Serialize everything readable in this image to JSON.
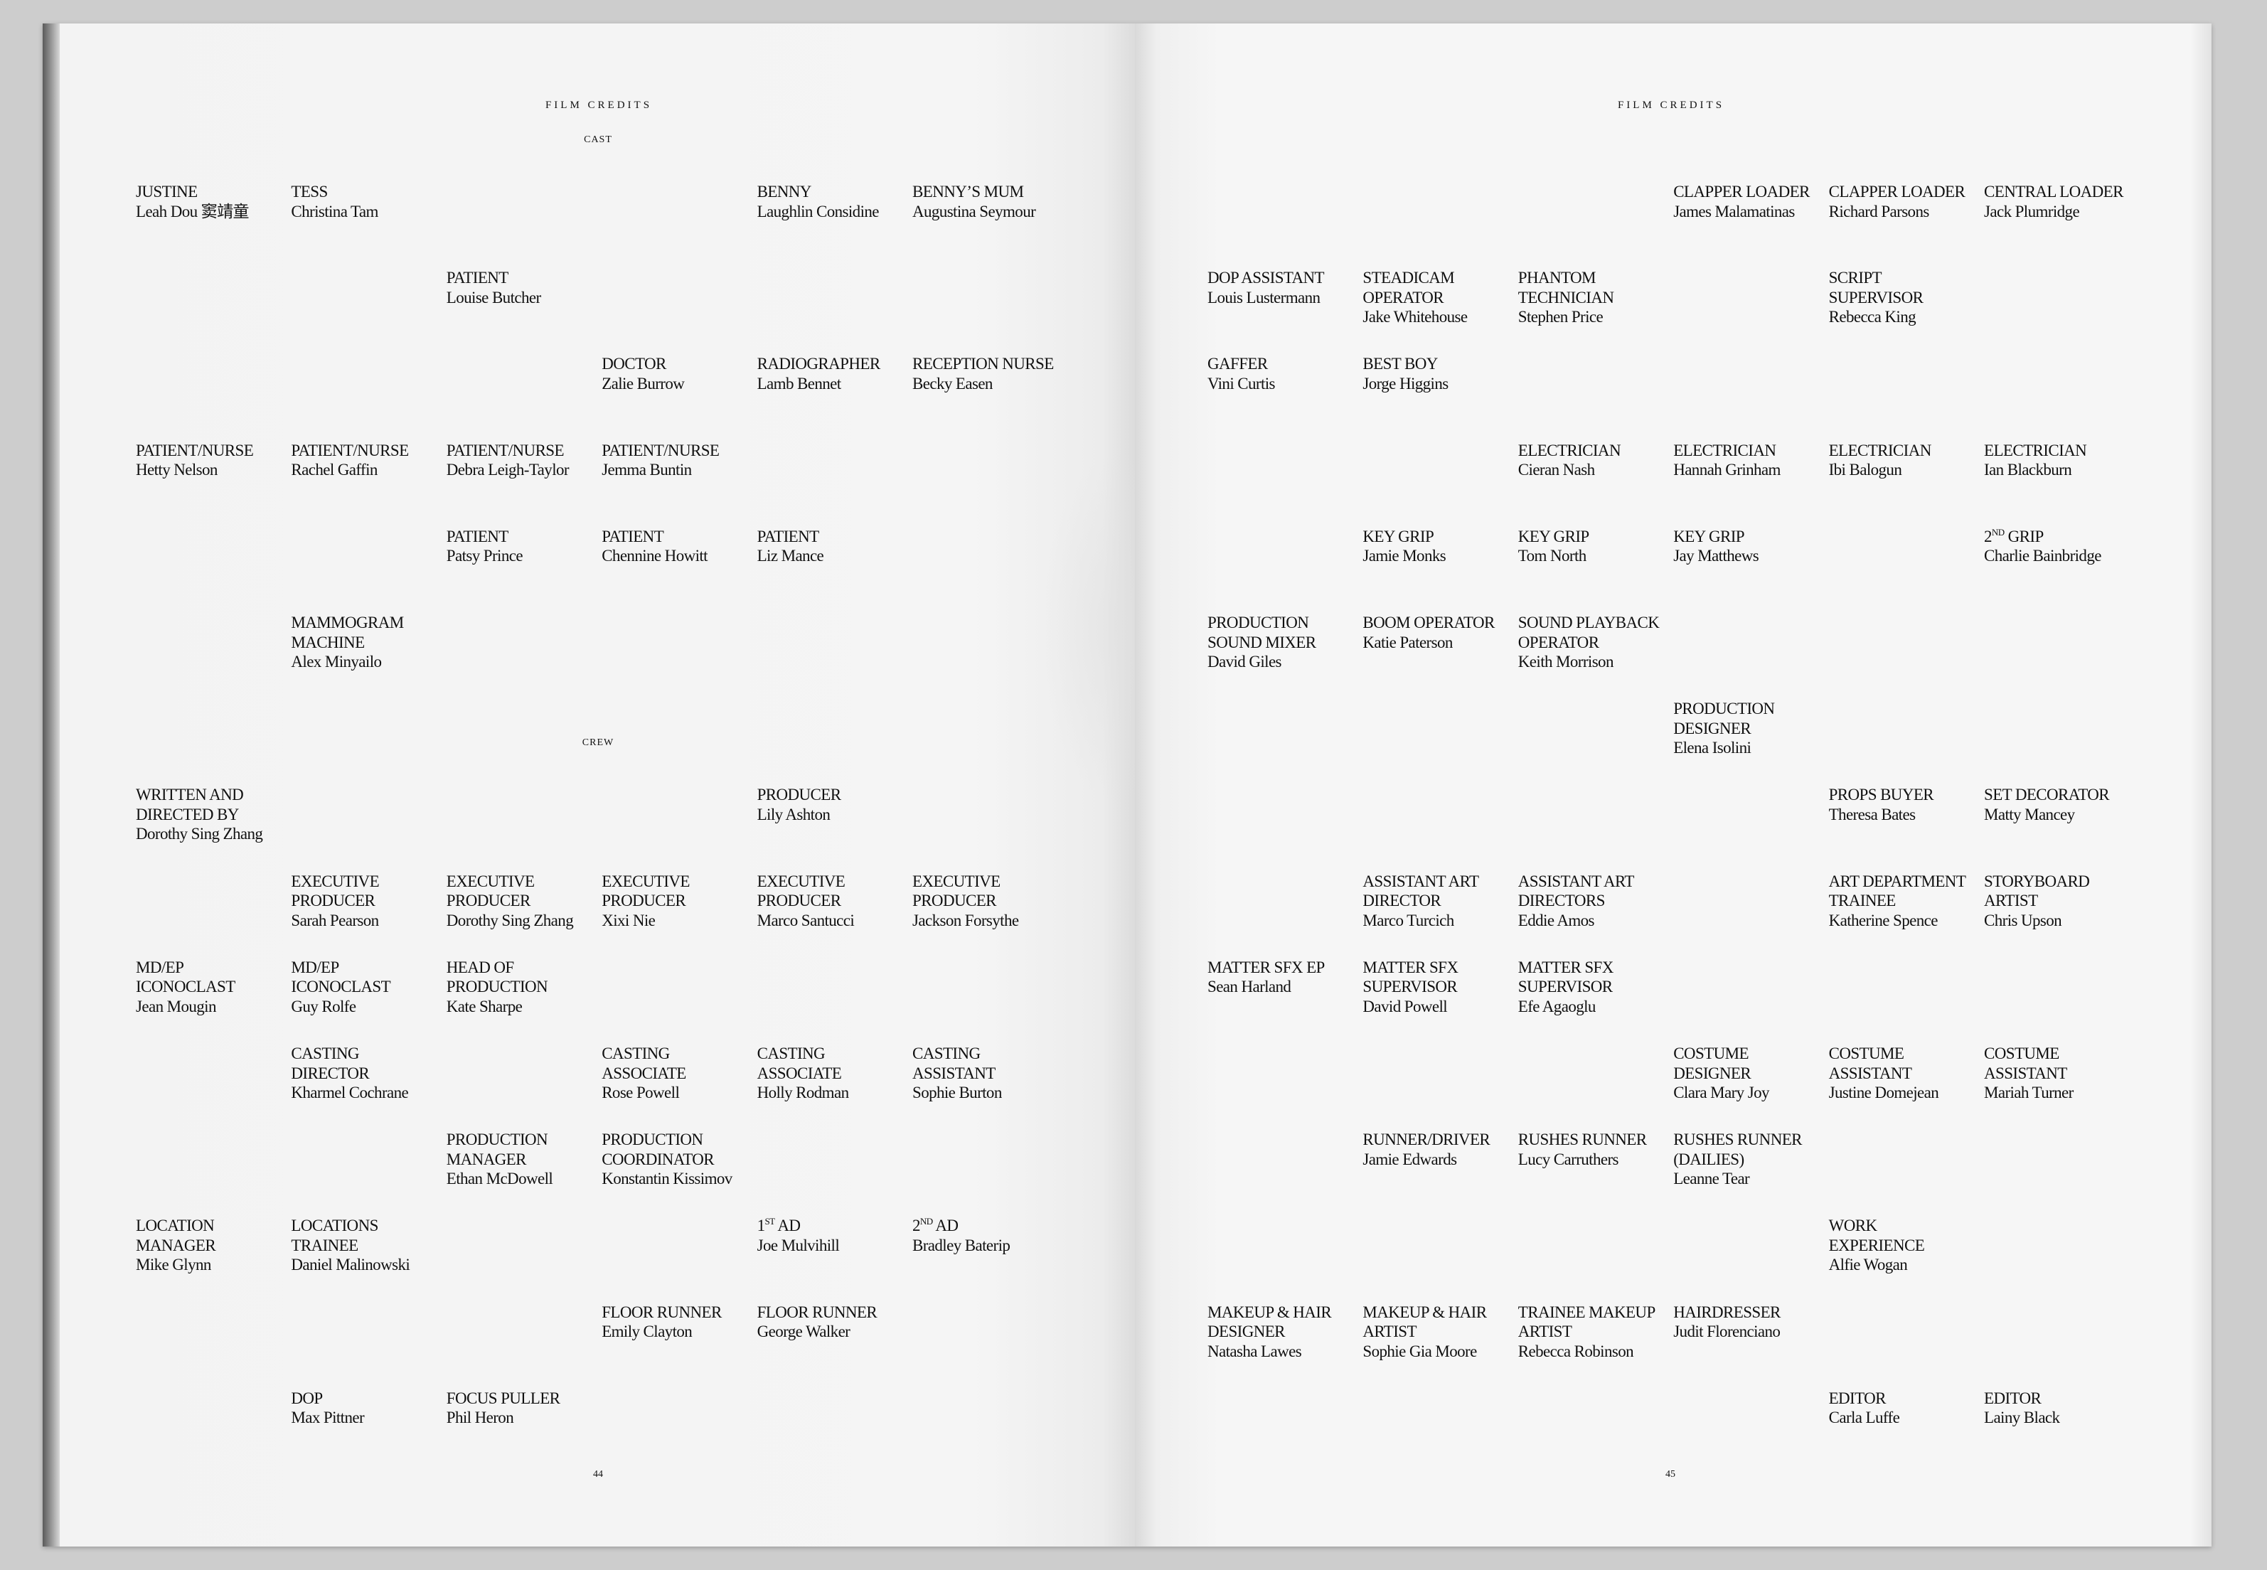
{
  "left_page": {
    "header": "FILM CREDITS",
    "page_number": "44",
    "cast": {
      "label": "CAST",
      "rows": [
        [
          {
            "role": [
              "JUSTINE"
            ],
            "name": "Leah Dou 窦靖童"
          },
          {
            "role": [
              "TESS"
            ],
            "name": "Christina Tam"
          },
          null,
          null,
          {
            "role": [
              "BENNY"
            ],
            "name": "Laughlin Considine"
          },
          {
            "role": [
              "BENNY’S MUM"
            ],
            "name": "Augustina Seymour"
          }
        ],
        [
          null,
          null,
          {
            "role": [
              "PATIENT"
            ],
            "name": "Louise Butcher"
          },
          null,
          null,
          null
        ],
        [
          null,
          null,
          null,
          {
            "role": [
              "DOCTOR"
            ],
            "name": "Zalie Burrow"
          },
          {
            "role": [
              "RADIOGRAPHER"
            ],
            "name": "Lamb Bennet"
          },
          {
            "role": [
              "RECEPTION NURSE"
            ],
            "name": "Becky Easen"
          }
        ],
        [
          {
            "role": [
              "PATIENT/NURSE"
            ],
            "name": "Hetty Nelson"
          },
          {
            "role": [
              "PATIENT/NURSE"
            ],
            "name": "Rachel Gaffin"
          },
          {
            "role": [
              "PATIENT/NURSE"
            ],
            "name": "Debra Leigh-Taylor"
          },
          {
            "role": [
              "PATIENT/NURSE"
            ],
            "name": "Jemma Buntin"
          },
          null,
          null
        ],
        [
          null,
          null,
          {
            "role": [
              "PATIENT"
            ],
            "name": "Patsy Prince"
          },
          {
            "role": [
              "PATIENT"
            ],
            "name": "Chennine Howitt"
          },
          {
            "role": [
              "PATIENT"
            ],
            "name": "Liz Mance"
          },
          null
        ],
        [
          null,
          {
            "role": [
              "MAMMOGRAM",
              "MACHINE"
            ],
            "name": "Alex Minyailo"
          },
          null,
          null,
          null,
          null
        ]
      ]
    },
    "crew": {
      "label": "CREW",
      "rows": [
        [
          {
            "role": [
              "WRITTEN AND",
              "DIRECTED BY"
            ],
            "name": "Dorothy Sing Zhang"
          },
          null,
          null,
          null,
          {
            "role": [
              "PRODUCER"
            ],
            "name": "Lily Ashton"
          },
          null
        ],
        [
          null,
          {
            "role": [
              "EXECUTIVE",
              "PRODUCER"
            ],
            "name": "Sarah Pearson"
          },
          {
            "role": [
              "EXECUTIVE",
              "PRODUCER"
            ],
            "name": "Dorothy Sing Zhang"
          },
          {
            "role": [
              "EXECUTIVE",
              "PRODUCER"
            ],
            "name": "Xixi Nie"
          },
          {
            "role": [
              "EXECUTIVE",
              "PRODUCER"
            ],
            "name": "Marco Santucci"
          },
          {
            "role": [
              "EXECUTIVE",
              "PRODUCER"
            ],
            "name": "Jackson Forsythe"
          }
        ],
        [
          {
            "role": [
              "MD/EP",
              "ICONOCLAST"
            ],
            "name": "Jean Mougin"
          },
          {
            "role": [
              "MD/EP",
              "ICONOCLAST"
            ],
            "name": "Guy Rolfe"
          },
          {
            "role": [
              "HEAD OF",
              "PRODUCTION"
            ],
            "name": "Kate Sharpe"
          },
          null,
          null,
          null
        ],
        [
          null,
          {
            "role": [
              "CASTING",
              "DIRECTOR"
            ],
            "name": "Kharmel Cochrane"
          },
          null,
          {
            "role": [
              "CASTING",
              "ASSOCIATE"
            ],
            "name": "Rose Powell"
          },
          {
            "role": [
              "CASTING",
              "ASSOCIATE"
            ],
            "name": "Holly Rodman"
          },
          {
            "role": [
              "CASTING",
              "ASSISTANT"
            ],
            "name": "Sophie Burton"
          }
        ],
        [
          null,
          null,
          {
            "role": [
              "PRODUCTION",
              "MANAGER"
            ],
            "name": "Ethan McDowell"
          },
          {
            "role": [
              "PRODUCTION",
              "COORDINATOR"
            ],
            "name": "Konstantin Kissimov"
          },
          null,
          null
        ],
        [
          {
            "role": [
              "LOCATION",
              "MANAGER"
            ],
            "name": "Mike Glynn"
          },
          {
            "role": [
              "LOCATIONS",
              "TRAINEE"
            ],
            "name": "Daniel Malinowski"
          },
          null,
          null,
          {
            "num": "1",
            "sup": "ST",
            "role": [
              " AD"
            ],
            "name": "Joe Mulvihill"
          },
          {
            "num": "2",
            "sup": "ND",
            "role": [
              " AD"
            ],
            "name": "Bradley Baterip"
          }
        ],
        [
          null,
          null,
          null,
          {
            "role": [
              "FLOOR RUNNER"
            ],
            "name": "Emily Clayton"
          },
          {
            "role": [
              "FLOOR RUNNER"
            ],
            "name": "George Walker"
          },
          null
        ],
        [
          null,
          {
            "role": [
              "DOP"
            ],
            "name": "Max Pittner"
          },
          {
            "role": [
              "FOCUS PULLER"
            ],
            "name": "Phil Heron"
          },
          null,
          null,
          null
        ]
      ]
    }
  },
  "right_page": {
    "header": "FILM CREDITS",
    "page_number": "45",
    "rows": [
      [
        null,
        null,
        null,
        {
          "role": [
            "CLAPPER LOADER"
          ],
          "name": "James Malamatinas"
        },
        {
          "role": [
            "CLAPPER LOADER"
          ],
          "name": "Richard Parsons"
        },
        {
          "role": [
            "CENTRAL LOADER"
          ],
          "name": "Jack Plumridge"
        }
      ],
      [
        {
          "role": [
            "DOP ASSISTANT"
          ],
          "name": "Louis Lustermann"
        },
        {
          "role": [
            "STEADICAM",
            "OPERATOR"
          ],
          "name": "Jake Whitehouse"
        },
        {
          "role": [
            "PHANTOM",
            "TECHNICIAN"
          ],
          "name": "Stephen Price"
        },
        null,
        {
          "role": [
            "SCRIPT",
            "SUPERVISOR"
          ],
          "name": "Rebecca King"
        },
        null
      ],
      [
        {
          "role": [
            "GAFFER"
          ],
          "name": "Vini Curtis"
        },
        {
          "role": [
            "BEST BOY"
          ],
          "name": "Jorge Higgins"
        },
        null,
        null,
        null,
        null
      ],
      [
        null,
        null,
        {
          "role": [
            "ELECTRICIAN"
          ],
          "name": "Cieran Nash"
        },
        {
          "role": [
            "ELECTRICIAN"
          ],
          "name": "Hannah Grinham"
        },
        {
          "role": [
            "ELECTRICIAN"
          ],
          "name": "Ibi Balogun"
        },
        {
          "role": [
            "ELECTRICIAN"
          ],
          "name": "Ian Blackburn"
        }
      ],
      [
        null,
        {
          "role": [
            "KEY GRIP"
          ],
          "name": "Jamie Monks"
        },
        {
          "role": [
            "KEY GRIP"
          ],
          "name": "Tom North"
        },
        {
          "role": [
            "KEY GRIP"
          ],
          "name": "Jay Matthews"
        },
        null,
        {
          "num": "2",
          "sup": "ND",
          "role": [
            " GRIP"
          ],
          "name": "Charlie Bainbridge"
        }
      ],
      [
        {
          "role": [
            "PRODUCTION",
            "SOUND MIXER"
          ],
          "name": "David Giles"
        },
        {
          "role": [
            "BOOM OPERATOR"
          ],
          "name": "Katie Paterson"
        },
        {
          "role": [
            "SOUND PLAYBACK",
            "OPERATOR"
          ],
          "name": "Keith Morrison"
        },
        null,
        null,
        null
      ],
      [
        null,
        null,
        null,
        {
          "role": [
            "PRODUCTION",
            "DESIGNER"
          ],
          "name": "Elena Isolini"
        },
        null,
        null
      ],
      [
        null,
        null,
        null,
        null,
        {
          "role": [
            "PROPS BUYER"
          ],
          "name": "Theresa Bates"
        },
        {
          "role": [
            "SET DECORATOR"
          ],
          "name": "Matty Mancey"
        }
      ],
      [
        null,
        {
          "role": [
            "ASSISTANT ART",
            "DIRECTOR"
          ],
          "name": "Marco Turcich"
        },
        {
          "role": [
            "ASSISTANT ART",
            "DIRECTORS"
          ],
          "name": "Eddie Amos"
        },
        null,
        {
          "role": [
            "ART DEPARTMENT",
            "TRAINEE"
          ],
          "name": "Katherine Spence"
        },
        {
          "role": [
            "STORYBOARD",
            "ARTIST"
          ],
          "name": "Chris Upson"
        }
      ],
      [
        {
          "role": [
            "MATTER SFX EP"
          ],
          "name": "Sean Harland"
        },
        {
          "role": [
            "MATTER SFX",
            "SUPERVISOR"
          ],
          "name": "David Powell"
        },
        {
          "role": [
            "MATTER SFX",
            "SUPERVISOR"
          ],
          "name": "Efe Agaoglu"
        },
        null,
        null,
        null
      ],
      [
        null,
        null,
        null,
        {
          "role": [
            "COSTUME",
            "DESIGNER"
          ],
          "name": "Clara Mary Joy"
        },
        {
          "role": [
            "COSTUME",
            "ASSISTANT"
          ],
          "name": "Justine Domejean"
        },
        {
          "role": [
            "COSTUME",
            "ASSISTANT"
          ],
          "name": "Mariah Turner"
        }
      ],
      [
        null,
        {
          "role": [
            "RUNNER/DRIVER"
          ],
          "name": "Jamie Edwards"
        },
        {
          "role": [
            "RUSHES RUNNER"
          ],
          "name": "Lucy Carruthers"
        },
        {
          "role": [
            "RUSHES RUNNER",
            "(DAILIES)"
          ],
          "name": "Leanne Tear"
        },
        null,
        null
      ],
      [
        null,
        null,
        null,
        null,
        {
          "role": [
            "WORK",
            "EXPERIENCE"
          ],
          "name": "Alfie Wogan"
        },
        null
      ],
      [
        {
          "role": [
            "MAKEUP & HAIR",
            "DESIGNER"
          ],
          "name": "Natasha Lawes"
        },
        {
          "role": [
            "MAKEUP & HAIR",
            "ARTIST"
          ],
          "name": "Sophie Gia Moore"
        },
        {
          "role": [
            "TRAINEE MAKEUP",
            "ARTIST"
          ],
          "name": "Rebecca Robinson"
        },
        {
          "role": [
            "HAIRDRESSER"
          ],
          "name": "Judit Florenciano"
        },
        null,
        null
      ],
      [
        null,
        null,
        null,
        null,
        {
          "role": [
            "EDITOR"
          ],
          "name": "Carla Luffe"
        },
        {
          "role": [
            "EDITOR"
          ],
          "name": "Lainy Black"
        }
      ]
    ]
  }
}
